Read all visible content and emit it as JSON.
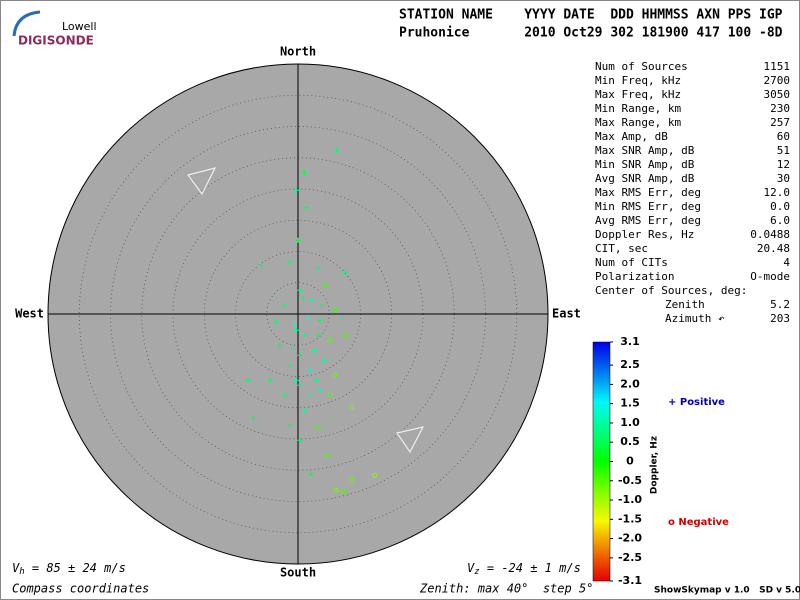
{
  "logo": {
    "line1": "Lowell",
    "line2": "DIGISONDE"
  },
  "header": {
    "line1": "STATION NAME    YYYY DATE  DDD HHMMSS AXN PPS IGP",
    "line2": "Pruhonice       2010 Oct29 302 181900 417 100 -8D"
  },
  "stats": [
    [
      "Num of Sources",
      "1151"
    ],
    [
      "Min Freq, kHz",
      "2700"
    ],
    [
      "Max Freq, kHz",
      "3050"
    ],
    [
      "Min Range, km",
      "230"
    ],
    [
      "Max Range, km",
      "257"
    ],
    [
      "Max Amp, dB",
      "60"
    ],
    [
      "Max SNR Amp, dB",
      "51"
    ],
    [
      "Min SNR Amp, dB",
      "12"
    ],
    [
      "Avg SNR Amp, dB",
      "30"
    ],
    [
      "Max RMS Err, deg",
      "12.0"
    ],
    [
      "Min RMS Err, deg",
      "0.0"
    ],
    [
      "Avg RMS Err, deg",
      "6.0"
    ],
    [
      "Doppler Res, Hz",
      "0.0488"
    ],
    [
      "CIT, sec",
      "20.48"
    ],
    [
      "Num of CITs",
      "4"
    ],
    [
      "Polarization",
      "O-mode"
    ]
  ],
  "center": {
    "title": "Center of Sources, deg:",
    "rows": [
      [
        "Zenith",
        "5.2"
      ],
      [
        "Azimuth ↶",
        "203"
      ]
    ]
  },
  "footer": {
    "vh": {
      "symbol": "V",
      "sub": "h",
      "text": " = 85 ± 24 m/s"
    },
    "vz": {
      "symbol": "V",
      "sub": "z",
      "text": " = -24 ± 1 m/s"
    },
    "coords": "Compass coordinates",
    "zenith": "Zenith: max 40°  step 5°",
    "version": "ShowSkymap v 1.0   SD v 5.0"
  },
  "chart_data": {
    "type": "skymap",
    "directions": {
      "north": "North",
      "south": "South",
      "west": "West",
      "east": "East"
    },
    "zenith_max": 40,
    "ring_step": 5,
    "colorbar": {
      "label": "Doppler, Hz",
      "clim": [
        -3.1,
        3.1
      ],
      "ticks": [
        3.1,
        2.5,
        {
          "value": 2,
          "label": "2.0"
        },
        1.5,
        {
          "value": 1,
          "label": "1.0"
        },
        0.5,
        0,
        -0.5,
        {
          "value": -1,
          "label": "-1.0"
        },
        -1.5,
        {
          "value": -2,
          "label": "-2.0"
        },
        -2.5,
        -3.1
      ]
    },
    "legend": {
      "positive": "+ Positive",
      "negative": "o Negative"
    },
    "x": [
      6.2,
      1.0,
      -0.2,
      1.4,
      0,
      -5.9,
      -1.3,
      3.2,
      7.5,
      4.3,
      0.3,
      2.2,
      -2.1,
      5.9,
      3.5,
      -0.5,
      1.1,
      5.1,
      -2.9,
      2.7,
      0.3,
      4.3,
      -1.3,
      1.9,
      5.9,
      -4.5,
      0.3,
      3.5,
      -8.0,
      -2.1,
      8.6,
      1.1,
      -7.2,
      -1.3,
      3.2,
      0.3,
      4.6,
      2.1,
      8.6,
      12.3,
      7.4,
      6.1,
      7.7,
      7.0,
      -0.3,
      3.2,
      1.6,
      -1.0,
      3.8,
      0.8,
      -3.5,
      5.1,
      1.9,
      -0.3,
      2.9
    ],
    "y": [
      26.2,
      22.6,
      19.8,
      17.0,
      11.8,
      7.8,
      8.3,
      7.4,
      6.7,
      4.6,
      3.8,
      2.2,
      1.4,
      0.6,
      -1.0,
      -1.8,
      -3.4,
      -4.2,
      -5.0,
      -5.8,
      -6.6,
      -7.4,
      -8.2,
      -9.0,
      -9.8,
      -10.6,
      -11.4,
      -12.2,
      -10.6,
      -13.0,
      -15.0,
      -15.4,
      -16.6,
      -17.8,
      -18.2,
      -20.2,
      -22.6,
      -25.6,
      -26.6,
      -25.8,
      -28.5,
      -28.2,
      -3.4,
      -0.6,
      -2.6,
      -3.4,
      -0.6,
      -5.4,
      1.4,
      2.6,
      -1.3,
      -13.0,
      -13.0,
      -10.6,
      -10.6
    ],
    "doppler": [
      0.6,
      0.4,
      0.9,
      0.5,
      0.3,
      0.7,
      0.5,
      0.8,
      0.6,
      -0.4,
      0.9,
      1.1,
      0.7,
      -0.3,
      0.5,
      1.3,
      0.8,
      -0.5,
      0.6,
      1.0,
      0.4,
      0.9,
      0.7,
      1.2,
      -0.6,
      0.5,
      0.8,
      1.0,
      0.6,
      0.7,
      -0.7,
      0.9,
      0.5,
      0.4,
      -0.4,
      0.6,
      -0.5,
      0.3,
      -0.6,
      -0.8,
      -0.5,
      -0.7,
      -0.4,
      0.9,
      1.0,
      0.6,
      1.4,
      0.8,
      0.5,
      0.7,
      0.6,
      -0.5,
      0.9,
      1.1,
      0.8
    ]
  }
}
